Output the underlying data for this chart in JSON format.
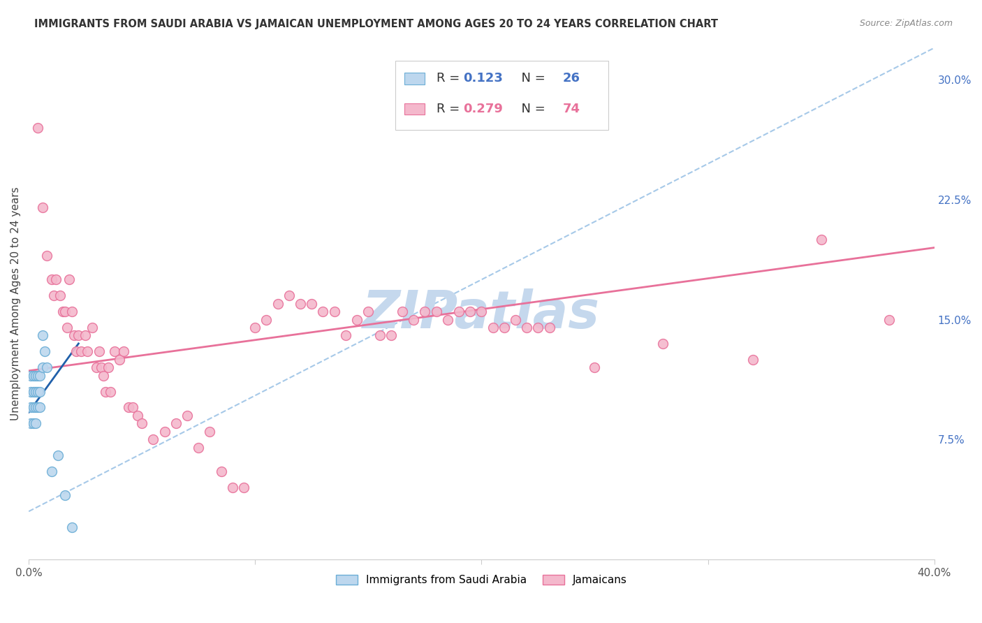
{
  "title": "IMMIGRANTS FROM SAUDI ARABIA VS JAMAICAN UNEMPLOYMENT AMONG AGES 20 TO 24 YEARS CORRELATION CHART",
  "source": "Source: ZipAtlas.com",
  "ylabel": "Unemployment Among Ages 20 to 24 years",
  "xmin": 0.0,
  "xmax": 0.4,
  "ymin": 0.0,
  "ymax": 0.32,
  "y_ticks_right": [
    0.075,
    0.15,
    0.225,
    0.3
  ],
  "y_tick_labels_right": [
    "7.5%",
    "15.0%",
    "22.5%",
    "30.0%"
  ],
  "background_color": "#ffffff",
  "grid_color": "#d0d0d0",
  "legend_R1_val": "0.123",
  "legend_N1_val": "26",
  "legend_R2_val": "0.279",
  "legend_N2_val": "74",
  "blue_scatter_x": [
    0.001,
    0.001,
    0.001,
    0.001,
    0.002,
    0.002,
    0.002,
    0.002,
    0.003,
    0.003,
    0.003,
    0.003,
    0.004,
    0.004,
    0.004,
    0.005,
    0.005,
    0.005,
    0.006,
    0.006,
    0.007,
    0.008,
    0.01,
    0.013,
    0.016,
    0.019
  ],
  "blue_scatter_y": [
    0.115,
    0.105,
    0.095,
    0.085,
    0.115,
    0.105,
    0.095,
    0.085,
    0.115,
    0.105,
    0.095,
    0.085,
    0.115,
    0.105,
    0.095,
    0.115,
    0.105,
    0.095,
    0.14,
    0.12,
    0.13,
    0.12,
    0.055,
    0.065,
    0.04,
    0.02
  ],
  "pink_scatter_x": [
    0.004,
    0.006,
    0.008,
    0.01,
    0.011,
    0.012,
    0.014,
    0.015,
    0.016,
    0.017,
    0.018,
    0.019,
    0.02,
    0.021,
    0.022,
    0.023,
    0.025,
    0.026,
    0.028,
    0.03,
    0.031,
    0.032,
    0.033,
    0.034,
    0.035,
    0.036,
    0.038,
    0.04,
    0.042,
    0.044,
    0.046,
    0.048,
    0.05,
    0.055,
    0.06,
    0.065,
    0.07,
    0.075,
    0.08,
    0.085,
    0.09,
    0.095,
    0.1,
    0.105,
    0.11,
    0.115,
    0.12,
    0.125,
    0.13,
    0.135,
    0.14,
    0.145,
    0.15,
    0.155,
    0.16,
    0.165,
    0.17,
    0.175,
    0.18,
    0.185,
    0.19,
    0.195,
    0.2,
    0.205,
    0.21,
    0.215,
    0.22,
    0.225,
    0.23,
    0.25,
    0.28,
    0.32,
    0.35,
    0.38
  ],
  "pink_scatter_y": [
    0.27,
    0.22,
    0.19,
    0.175,
    0.165,
    0.175,
    0.165,
    0.155,
    0.155,
    0.145,
    0.175,
    0.155,
    0.14,
    0.13,
    0.14,
    0.13,
    0.14,
    0.13,
    0.145,
    0.12,
    0.13,
    0.12,
    0.115,
    0.105,
    0.12,
    0.105,
    0.13,
    0.125,
    0.13,
    0.095,
    0.095,
    0.09,
    0.085,
    0.075,
    0.08,
    0.085,
    0.09,
    0.07,
    0.08,
    0.055,
    0.045,
    0.045,
    0.145,
    0.15,
    0.16,
    0.165,
    0.16,
    0.16,
    0.155,
    0.155,
    0.14,
    0.15,
    0.155,
    0.14,
    0.14,
    0.155,
    0.15,
    0.155,
    0.155,
    0.15,
    0.155,
    0.155,
    0.155,
    0.145,
    0.145,
    0.15,
    0.145,
    0.145,
    0.145,
    0.12,
    0.135,
    0.125,
    0.2,
    0.15
  ],
  "blue_line_x": [
    0.0,
    0.022
  ],
  "blue_line_y": [
    0.092,
    0.135
  ],
  "pink_line_x": [
    0.0,
    0.4
  ],
  "pink_line_y": [
    0.118,
    0.195
  ],
  "dashed_line_x": [
    0.0,
    0.4
  ],
  "dashed_line_y": [
    0.03,
    0.32
  ],
  "scatter_size": 100,
  "blue_color": "#6BAED6",
  "blue_face_color": "#BDD7EE",
  "pink_color": "#E8719A",
  "pink_face_color": "#F4B8CC",
  "blue_line_color": "#2060AA",
  "dashed_line_color": "#9DC3E6",
  "watermark_color": "#C5D8ED",
  "right_axis_color": "#4472C4",
  "legend_val_color": "#4472C4",
  "legend_pink_val_color": "#E8719A"
}
